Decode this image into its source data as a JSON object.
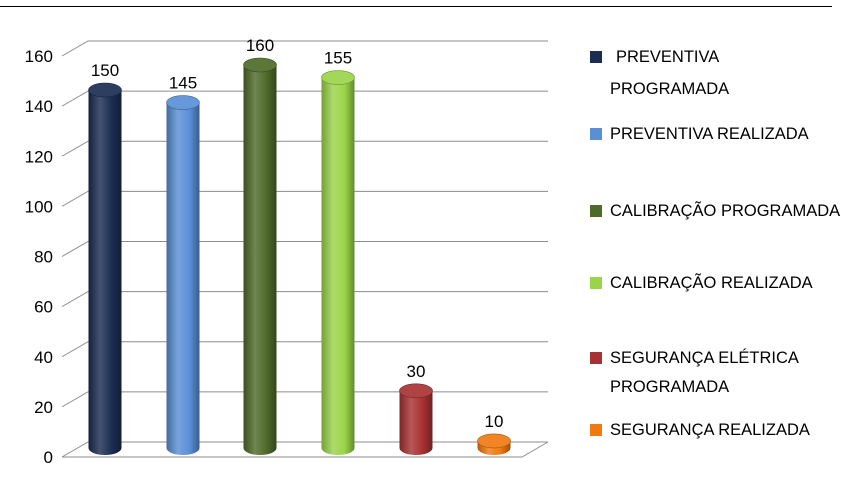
{
  "chart_data": {
    "type": "bar",
    "categories": [
      "PREVENTIVA PROGRAMADA",
      "PREVENTIVA REALIZADA",
      "CALIBRAÇÃO PROGRAMADA",
      "CALIBRAÇÃO REALIZADA",
      "SEGURANÇA ELÉTRICA PROGRAMADA",
      "SEGURANÇA REALIZADA"
    ],
    "values": [
      150,
      145,
      160,
      155,
      30,
      10
    ],
    "data_labels": [
      "150",
      "145",
      "160",
      "155",
      "30",
      "10"
    ],
    "colors": [
      "#1b2d52",
      "#5a8fd6",
      "#4f6b2a",
      "#9bd44a",
      "#a83232",
      "#f07a10"
    ],
    "ylim": [
      0,
      160
    ],
    "yticks": [
      0,
      20,
      40,
      60,
      80,
      100,
      120,
      140,
      160
    ],
    "ytick_labels": [
      "0",
      "20",
      "40",
      "60",
      "80",
      "100",
      "120",
      "140",
      "160"
    ],
    "grid": true,
    "legend_position": "right",
    "style": "3d-cylinder",
    "title": "",
    "xlabel": "",
    "ylabel": ""
  },
  "legend": {
    "items": [
      {
        "line1": "PREVENTIVA",
        "line2": "PROGRAMADA"
      },
      {
        "line1": "PREVENTIVA REALIZADA",
        "line2": ""
      },
      {
        "line1": "CALIBRAÇÃO PROGRAMADA",
        "line2": ""
      },
      {
        "line1": "CALIBRAÇÃO REALIZADA",
        "line2": ""
      },
      {
        "line1": "SEGURANÇA ELÉTRICA",
        "line2": "PROGRAMADA"
      },
      {
        "line1": "SEGURANÇA REALIZADA",
        "line2": ""
      }
    ]
  }
}
